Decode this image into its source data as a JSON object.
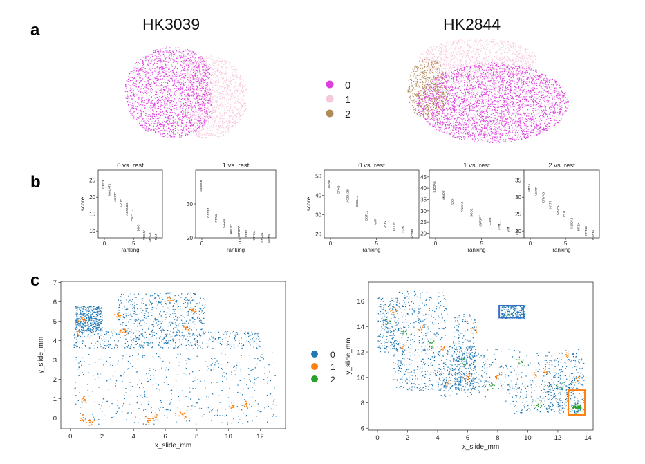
{
  "panels": {
    "a": "a",
    "b": "b",
    "c": "c"
  },
  "samples": [
    "HK3039",
    "HK2844"
  ],
  "colors": {
    "cluster0_umap": "#dd3fdd",
    "cluster1_umap": "#f6c8dc",
    "cluster2_umap": "#b08a5a",
    "cluster0_spatial": "#1f77b4",
    "cluster1_spatial": "#ff7f0e",
    "cluster2_spatial": "#2ca02c"
  },
  "chart_data": [
    {
      "panel": "a",
      "type": "scatter",
      "title": "HK3039",
      "series": [
        {
          "name": "0"
        },
        {
          "name": "1"
        }
      ]
    },
    {
      "panel": "a",
      "type": "scatter",
      "title": "HK2844",
      "legend": [
        "0",
        "1",
        "2"
      ],
      "series": [
        {
          "name": "0"
        },
        {
          "name": "1"
        },
        {
          "name": "2"
        }
      ]
    },
    {
      "panel": "b",
      "type": "scatter",
      "title": "0 vs. rest",
      "xlabel": "ranking",
      "ylabel": "score",
      "ylim": [
        8,
        28
      ],
      "yticks": [
        10,
        15,
        20,
        25
      ],
      "xticks": [
        0,
        5
      ],
      "genes": [
        "GPX3",
        "MALAT1",
        "ADIRF",
        "APOE",
        "ACSM2B",
        "CXCL14",
        "DDC",
        "VEGFA",
        "MEG3",
        "MAF"
      ],
      "values": [
        25.0,
        24.0,
        21.5,
        19.5,
        18.5,
        16.5,
        12.0,
        10.5,
        9.5,
        9.3
      ]
    },
    {
      "panel": "b",
      "type": "scatter",
      "title": "1 vs. rest",
      "xlabel": "ranking",
      "ylim": [
        20,
        40
      ],
      "yticks": [
        20,
        30
      ],
      "xticks": [
        0,
        5
      ],
      "genes": [
        "S100A6",
        "GSTP1",
        "PFN1",
        "CD24",
        "RPL37",
        "IGFBP7",
        "SPP1",
        "KRT2A",
        "RPL34",
        "KRT8"
      ],
      "values": [
        37.0,
        29.0,
        27.0,
        25.5,
        24.0,
        23.5,
        22.5,
        22.0,
        21.5,
        21.0
      ]
    },
    {
      "panel": "b",
      "type": "scatter",
      "title": "0 vs. rest",
      "xlabel": "ranking",
      "ylabel": "score",
      "ylim": [
        18,
        53
      ],
      "yticks": [
        20,
        30,
        40,
        50
      ],
      "xticks": [
        0,
        5
      ],
      "genes": [
        "APOE",
        "GPX3",
        "ACSM2B",
        "CXCL14",
        "COTL1",
        "MAF",
        "LRP2",
        "CLDN",
        "CD74",
        "ACSF1"
      ],
      "values": [
        48.0,
        45.0,
        43.0,
        40.0,
        32.0,
        28.0,
        27.0,
        26.0,
        24.0,
        23.0
      ]
    },
    {
      "panel": "b",
      "type": "scatter",
      "title": "1 vs. rest",
      "xlabel": "ranking",
      "ylim": [
        18,
        48
      ],
      "yticks": [
        20,
        25,
        30,
        35,
        40,
        45
      ],
      "xticks": [
        0,
        5
      ],
      "genes": [
        "S100A6",
        "MMP7",
        "SPP1",
        "ANXA2",
        "SOD2",
        "IGFBP7",
        "CD63",
        "TPM1",
        "VIM",
        "IL32"
      ],
      "values": [
        43.0,
        39.0,
        36.0,
        34.0,
        31.0,
        28.0,
        27.0,
        25.0,
        23.0,
        22.0
      ]
    },
    {
      "panel": "b",
      "type": "scatter",
      "title": "2 vs. rest",
      "xlabel": "ranking",
      "ylim": [
        18,
        38
      ],
      "yticks": [
        20,
        25,
        30,
        35
      ],
      "xticks": [
        0,
        5
      ],
      "genes": [
        "MT2A",
        "ADIRF",
        "CRYAB",
        "KRT7",
        "CRIP1",
        "CLU",
        "S100A6",
        "MT1X",
        "KRT19",
        "HSPB1"
      ],
      "values": [
        34.0,
        33.0,
        31.5,
        29.0,
        27.5,
        26.0,
        24.0,
        22.5,
        21.5,
        20.5
      ]
    },
    {
      "panel": "c",
      "type": "scatter",
      "xlabel": "x_slide_mm",
      "ylabel": "y_slide_mm",
      "xlim": [
        -0.6,
        13.6
      ],
      "ylim": [
        -0.55,
        7.05
      ],
      "xticks": [
        0,
        2,
        4,
        6,
        8,
        10,
        12
      ],
      "yticks": [
        0,
        1,
        2,
        3,
        4,
        5,
        6,
        7
      ],
      "series": [
        {
          "name": "0"
        },
        {
          "name": "1"
        }
      ]
    },
    {
      "panel": "c",
      "type": "scatter",
      "xlabel": "x_slide_mm",
      "ylabel": "y_slide_mm",
      "xlim": [
        -0.6,
        14.35
      ],
      "ylim": [
        5.85,
        17.5
      ],
      "xticks": [
        0,
        2,
        4,
        6,
        8,
        10,
        12,
        14
      ],
      "yticks": [
        6,
        8,
        10,
        12,
        14,
        16
      ],
      "legend": [
        "0",
        "1",
        "2"
      ],
      "series": [
        {
          "name": "0"
        },
        {
          "name": "1"
        },
        {
          "name": "2"
        }
      ],
      "annotations": [
        {
          "type": "box",
          "color": "#3b6fc4",
          "x": [
            8.1,
            9.7
          ],
          "y": [
            14.7,
            15.65
          ]
        },
        {
          "type": "box",
          "color": "#ff7f0e",
          "x": [
            12.7,
            13.8
          ],
          "y": [
            7.05,
            9.0
          ]
        }
      ]
    }
  ]
}
